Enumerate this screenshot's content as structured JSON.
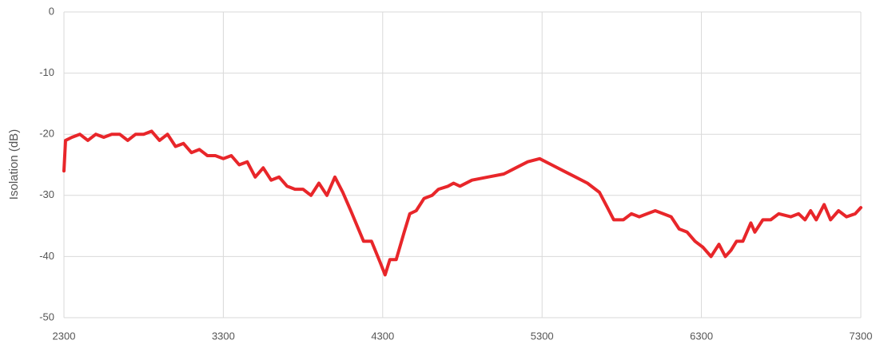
{
  "chart_data": {
    "type": "line",
    "ylabel": "Isolation (dB)",
    "color": "#e8262a",
    "grid": true,
    "xlim": [
      2300,
      7300
    ],
    "xticks": [
      2300,
      3300,
      4300,
      5300,
      6300,
      7300
    ],
    "ylim": [
      -50,
      0
    ],
    "yticks": [
      0,
      -10,
      -20,
      -30,
      -40,
      -50
    ],
    "x": [
      2300,
      2310,
      2350,
      2400,
      2450,
      2500,
      2550,
      2600,
      2650,
      2700,
      2750,
      2800,
      2850,
      2900,
      2950,
      3000,
      3050,
      3100,
      3150,
      3200,
      3250,
      3300,
      3350,
      3400,
      3450,
      3500,
      3550,
      3600,
      3650,
      3700,
      3750,
      3800,
      3850,
      3900,
      3950,
      4000,
      4050,
      4100,
      4180,
      4230,
      4285,
      4315,
      4345,
      4385,
      4435,
      4470,
      4510,
      4560,
      4610,
      4650,
      4710,
      4745,
      4785,
      4860,
      4960,
      5060,
      5135,
      5210,
      5285,
      5360,
      5435,
      5510,
      5585,
      5660,
      5710,
      5750,
      5810,
      5860,
      5910,
      5960,
      6010,
      6060,
      6110,
      6160,
      6210,
      6260,
      6310,
      6360,
      6410,
      6450,
      6485,
      6520,
      6560,
      6610,
      6635,
      6685,
      6735,
      6785,
      6860,
      6910,
      6950,
      6985,
      7020,
      7070,
      7110,
      7160,
      7210,
      7265,
      7300
    ],
    "values": [
      -26,
      -21,
      -20.5,
      -20,
      -21,
      -20,
      -20.5,
      -20,
      -20,
      -21,
      -20,
      -20,
      -19.5,
      -21,
      -20,
      -22,
      -21.5,
      -23,
      -22.5,
      -23.5,
      -23.5,
      -24,
      -23.5,
      -25,
      -24.5,
      -27,
      -25.5,
      -27.5,
      -27,
      -28.5,
      -29,
      -29,
      -30,
      -28,
      -30,
      -27,
      -29.5,
      -32.5,
      -37.5,
      -37.5,
      -41,
      -43,
      -40.5,
      -40.5,
      -36,
      -33,
      -32.5,
      -30.5,
      -30,
      -29,
      -28.5,
      -28,
      -28.5,
      -27.5,
      -27,
      -26.5,
      -25.5,
      -24.5,
      -24,
      -25,
      -26,
      -27,
      -28,
      -29.5,
      -32,
      -34,
      -34,
      -33,
      -33.5,
      -33,
      -32.5,
      -33,
      -33.5,
      -35.5,
      -36,
      -37.5,
      -38.5,
      -40,
      -38,
      -40,
      -39,
      -37.5,
      -37.5,
      -34.5,
      -36,
      -34,
      -34,
      -33,
      -33.5,
      -33,
      -34,
      -32.5,
      -34,
      -31.5,
      -34,
      -32.5,
      -33.5,
      -33,
      -32
    ]
  }
}
